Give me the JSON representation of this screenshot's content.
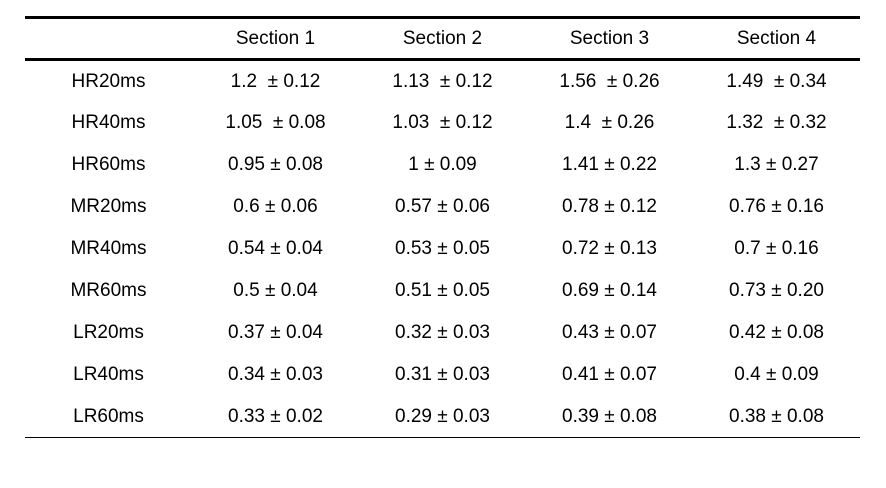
{
  "page": {
    "background_color": "#ffffff",
    "text_color": "#000000",
    "rule_color": "#000000"
  },
  "table": {
    "columns": [
      "",
      "Section 1",
      "Section 2",
      "Section 3",
      "Section 4"
    ],
    "rows": [
      {
        "label": "HR20ms",
        "values": [
          "1.2  ± 0.12",
          "1.13  ± 0.12",
          "1.56  ± 0.26",
          "1.49  ± 0.34"
        ]
      },
      {
        "label": "HR40ms",
        "values": [
          "1.05  ± 0.08",
          "1.03  ± 0.12",
          "1.4  ± 0.26",
          "1.32  ± 0.32"
        ]
      },
      {
        "label": "HR60ms",
        "values": [
          "0.95 ± 0.08",
          "1 ± 0.09",
          "1.41 ± 0.22",
          "1.3 ± 0.27"
        ]
      },
      {
        "label": "MR20ms",
        "values": [
          "0.6 ± 0.06",
          "0.57 ± 0.06",
          "0.78 ± 0.12",
          "0.76 ± 0.16"
        ]
      },
      {
        "label": "MR40ms",
        "values": [
          "0.54 ± 0.04",
          "0.53 ± 0.05",
          "0.72 ± 0.13",
          "0.7 ± 0.16"
        ]
      },
      {
        "label": "MR60ms",
        "values": [
          "0.5 ± 0.04",
          "0.51 ± 0.05",
          "0.69 ± 0.14",
          "0.73 ± 0.20"
        ]
      },
      {
        "label": "LR20ms",
        "values": [
          "0.37 ± 0.04",
          "0.32 ± 0.03",
          "0.43 ± 0.07",
          "0.42 ± 0.08"
        ]
      },
      {
        "label": "LR40ms",
        "values": [
          "0.34 ± 0.03",
          "0.31 ± 0.03",
          "0.41 ± 0.07",
          "0.4 ± 0.09"
        ]
      },
      {
        "label": "LR60ms",
        "values": [
          "0.33 ± 0.02",
          "0.29 ± 0.03",
          "0.39 ± 0.08",
          "0.38 ± 0.08"
        ]
      }
    ]
  },
  "chart_data": {
    "type": "table",
    "title": "",
    "categories": [
      "HR20ms",
      "HR40ms",
      "HR60ms",
      "MR20ms",
      "MR40ms",
      "MR60ms",
      "LR20ms",
      "LR40ms",
      "LR60ms"
    ],
    "value_format": "mean ± sd",
    "series": [
      {
        "name": "Section 1",
        "means": [
          1.2,
          1.05,
          0.95,
          0.6,
          0.54,
          0.5,
          0.37,
          0.34,
          0.33
        ],
        "sds": [
          0.12,
          0.08,
          0.08,
          0.06,
          0.04,
          0.04,
          0.04,
          0.03,
          0.02
        ]
      },
      {
        "name": "Section 2",
        "means": [
          1.13,
          1.03,
          1.0,
          0.57,
          0.53,
          0.51,
          0.32,
          0.31,
          0.29
        ],
        "sds": [
          0.12,
          0.12,
          0.09,
          0.06,
          0.05,
          0.05,
          0.03,
          0.03,
          0.03
        ]
      },
      {
        "name": "Section 3",
        "means": [
          1.56,
          1.4,
          1.41,
          0.78,
          0.72,
          0.69,
          0.43,
          0.41,
          0.39
        ],
        "sds": [
          0.26,
          0.26,
          0.22,
          0.12,
          0.13,
          0.14,
          0.07,
          0.07,
          0.08
        ]
      },
      {
        "name": "Section 4",
        "means": [
          1.49,
          1.32,
          1.3,
          0.76,
          0.7,
          0.73,
          0.42,
          0.4,
          0.38
        ],
        "sds": [
          0.34,
          0.32,
          0.27,
          0.16,
          0.16,
          0.2,
          0.08,
          0.09,
          0.08
        ]
      }
    ],
    "layout": {
      "grid": false,
      "horizontal_rules": "top, below-header, bottom",
      "vertical_rules": false
    }
  }
}
